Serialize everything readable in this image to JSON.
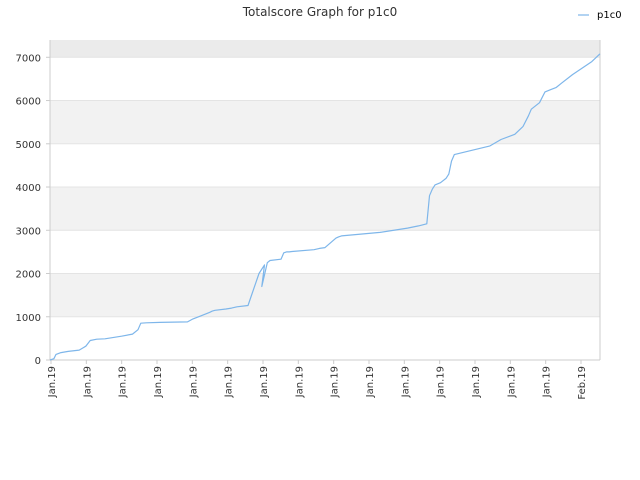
{
  "chart_data": {
    "type": "line",
    "title": "Totalscore Graph for p1c0",
    "xlabel": "",
    "ylabel": "",
    "ylim": [
      0,
      7400
    ],
    "y_ticks": [
      0,
      1000,
      2000,
      3000,
      4000,
      5000,
      6000,
      7000
    ],
    "x_tick_labels": [
      "Jan.19",
      "Jan.19",
      "Jan.19",
      "Jan.19",
      "Jan.19",
      "Jan.19",
      "Jan.19",
      "Jan.19",
      "Jan.19",
      "Jan.19",
      "Jan.19",
      "Jan.19",
      "Jan.19",
      "Jan.19",
      "Jan.19",
      "Feb.19"
    ],
    "grid": true,
    "legend": {
      "position": "top-right"
    },
    "colors": {
      "series": "#7eb6ea",
      "band_dark": "#f2f2f2",
      "band_light": "#ffffff",
      "top_band": "#ebebeb",
      "axis": "#cccccc"
    },
    "x_is_fraction_of_range": true,
    "series": [
      {
        "name": "p1c0",
        "x": [
          0,
          0.007,
          0.011,
          0.02,
          0.033,
          0.053,
          0.06,
          0.065,
          0.073,
          0.085,
          0.1,
          0.13,
          0.15,
          0.16,
          0.165,
          0.175,
          0.2,
          0.25,
          0.26,
          0.27,
          0.29,
          0.295,
          0.3,
          0.32,
          0.33,
          0.34,
          0.36,
          0.38,
          0.39,
          0.385,
          0.395,
          0.4,
          0.42,
          0.425,
          0.43,
          0.435,
          0.44,
          0.48,
          0.49,
          0.5,
          0.52,
          0.525,
          0.53,
          0.6,
          0.65,
          0.67,
          0.685,
          0.69,
          0.695,
          0.7,
          0.71,
          0.72,
          0.725,
          0.73,
          0.735,
          0.8,
          0.82,
          0.845,
          0.86,
          0.87,
          0.875,
          0.89,
          0.9,
          0.91,
          0.92,
          0.93,
          0.95,
          0.985,
          1.0
        ],
        "values": [
          0,
          30,
          130,
          170,
          200,
          230,
          280,
          320,
          450,
          480,
          490,
          550,
          600,
          700,
          850,
          860,
          870,
          880,
          950,
          1000,
          1100,
          1130,
          1150,
          1180,
          1200,
          1230,
          1260,
          2000,
          2200,
          1700,
          2250,
          2300,
          2330,
          2480,
          2500,
          2500,
          2510,
          2550,
          2580,
          2600,
          2820,
          2850,
          2870,
          2950,
          3050,
          3100,
          3150,
          3800,
          3950,
          4050,
          4100,
          4200,
          4300,
          4600,
          4750,
          4950,
          5100,
          5220,
          5400,
          5650,
          5800,
          5950,
          6200,
          6250,
          6300,
          6400,
          6600,
          6900,
          7080
        ]
      }
    ]
  }
}
